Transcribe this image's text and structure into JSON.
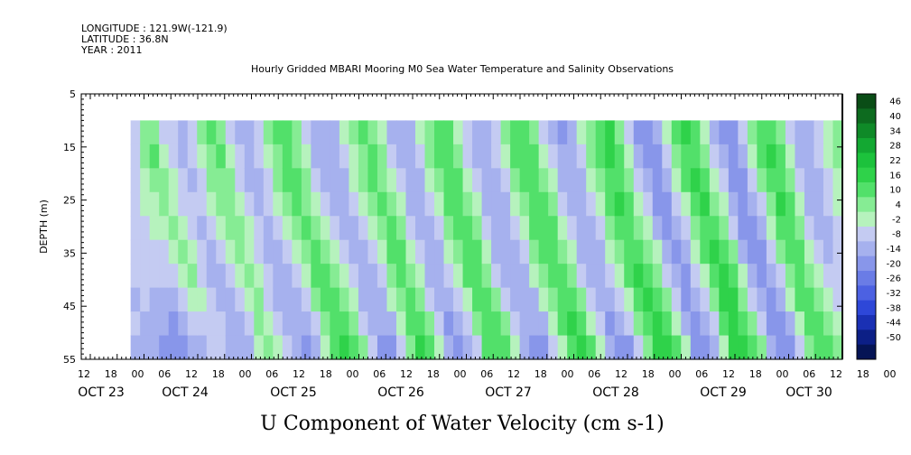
{
  "header": {
    "longitude": "LONGITUDE : 121.9W(-121.9)",
    "latitude": "LATITUDE : 36.8N",
    "year": "YEAR : 2011"
  },
  "chart_data": {
    "type": "heatmap",
    "title": "Hourly Gridded MBARI Mooring M0 Sea Water Temperature and Salinity Observations",
    "subtitle": "U Component of Water Velocity (cm s-1)",
    "ylabel": "DEPTH (m)",
    "ylim": [
      55,
      5
    ],
    "y_ticks": [
      5,
      15,
      25,
      35,
      45,
      55
    ],
    "x_hour_ticks": [
      "12",
      "18",
      "00",
      "06",
      "12",
      "18",
      "00",
      "06",
      "12",
      "18",
      "00",
      "06",
      "12",
      "18",
      "00",
      "06",
      "12",
      "18",
      "00",
      "06",
      "12",
      "18",
      "00",
      "06",
      "12",
      "18",
      "00",
      "06",
      "12",
      "18",
      "00",
      "06",
      "12"
    ],
    "x_date_labels": [
      "OCT 23",
      "OCT 24",
      "OCT 25",
      "OCT 26",
      "OCT 27",
      "OCT 28",
      "OCT 29",
      "OCT 30"
    ],
    "data_start": "2011-10-23 20:00",
    "data_depth_range": [
      10,
      55
    ],
    "colorbar": {
      "labels": [
        46,
        40,
        34,
        28,
        22,
        16,
        10,
        4,
        -2,
        -8,
        -14,
        -20,
        -26,
        -32,
        -38,
        -44,
        -50
      ],
      "colors": [
        "#0a4d16",
        "#0d6b1f",
        "#0f8a28",
        "#13a832",
        "#1cc23c",
        "#2fd24a",
        "#52e06a",
        "#86ec94",
        "#b6f2bd",
        "#c4cbf2",
        "#a6b1ee",
        "#8896ea",
        "#6a7ce6",
        "#4c61e2",
        "#2e47d8",
        "#1a30b4",
        "#0c1f86",
        "#051455"
      ]
    },
    "columns": [
      {
        "day": 0.0,
        "u": [
          -6,
          -8,
          -6,
          -4,
          -3,
          -5,
          -7,
          -9,
          -8,
          -10
        ]
      },
      {
        "day": 0.1,
        "u": [
          4,
          6,
          2,
          -2,
          -3,
          -4,
          -6,
          -8,
          -10,
          -12
        ]
      },
      {
        "day": 0.2,
        "u": [
          8,
          10,
          8,
          3,
          -2,
          -6,
          -8,
          -10,
          -12,
          -14
        ]
      },
      {
        "day": 0.3,
        "u": [
          -4,
          2,
          6,
          4,
          0,
          -4,
          -8,
          -12,
          -14,
          -16
        ]
      },
      {
        "day": 0.4,
        "u": [
          -8,
          -6,
          -2,
          2,
          4,
          0,
          -4,
          -10,
          -16,
          -18
        ]
      },
      {
        "day": 0.5,
        "u": [
          -10,
          -10,
          -8,
          -4,
          0,
          4,
          2,
          -4,
          -12,
          -20
        ]
      },
      {
        "day": 0.6,
        "u": [
          -6,
          -8,
          -10,
          -8,
          -4,
          0,
          4,
          2,
          -4,
          -14
        ]
      },
      {
        "day": 0.7,
        "u": [
          6,
          2,
          -4,
          -8,
          -10,
          -8,
          -4,
          0,
          -4,
          -10
        ]
      },
      {
        "day": 0.8,
        "u": [
          10,
          8,
          4,
          -2,
          -8,
          -12,
          -10,
          -6,
          -4,
          -8
        ]
      },
      {
        "day": 0.9,
        "u": [
          8,
          10,
          8,
          4,
          -2,
          -8,
          -12,
          -12,
          -8,
          -6
        ]
      },
      {
        "day": 1.0,
        "u": [
          -4,
          2,
          6,
          8,
          6,
          2,
          -4,
          -10,
          -12,
          -10
        ]
      },
      {
        "day": 1.1,
        "u": [
          -10,
          -8,
          -4,
          2,
          6,
          6,
          2,
          -4,
          -10,
          -12
        ]
      },
      {
        "day": 1.2,
        "u": [
          -12,
          -12,
          -10,
          -6,
          -2,
          2,
          4,
          2,
          -4,
          -10
        ]
      },
      {
        "day": 1.3,
        "u": [
          -6,
          -8,
          -10,
          -10,
          -8,
          -4,
          0,
          4,
          4,
          0
        ]
      },
      {
        "day": 1.4,
        "u": [
          4,
          0,
          -4,
          -8,
          -10,
          -10,
          -8,
          -4,
          2,
          6
        ]
      },
      {
        "day": 1.5,
        "u": [
          10,
          8,
          4,
          -2,
          -6,
          -10,
          -12,
          -10,
          -6,
          0
        ]
      },
      {
        "day": 1.6,
        "u": [
          12,
          12,
          10,
          6,
          0,
          -6,
          -10,
          -12,
          -12,
          -8
        ]
      },
      {
        "day": 1.7,
        "u": [
          4,
          8,
          10,
          10,
          6,
          0,
          -6,
          -10,
          -14,
          -14
        ]
      },
      {
        "day": 1.8,
        "u": [
          -6,
          -2,
          4,
          8,
          10,
          8,
          2,
          -4,
          -10,
          -16
        ]
      },
      {
        "day": 1.9,
        "u": [
          -12,
          -10,
          -6,
          0,
          6,
          10,
          10,
          4,
          -4,
          -12
        ]
      },
      {
        "day": 2.0,
        "u": [
          -14,
          -14,
          -12,
          -8,
          -2,
          4,
          10,
          12,
          8,
          0
        ]
      },
      {
        "day": 2.1,
        "u": [
          -10,
          -12,
          -14,
          -12,
          -8,
          -2,
          4,
          10,
          14,
          12
        ]
      },
      {
        "day": 2.2,
        "u": [
          -2,
          -6,
          -10,
          -12,
          -12,
          -8,
          -2,
          6,
          12,
          18
        ]
      },
      {
        "day": 2.3,
        "u": [
          6,
          2,
          -2,
          -8,
          -12,
          -12,
          -8,
          -2,
          6,
          14
        ]
      },
      {
        "day": 2.4,
        "u": [
          10,
          8,
          4,
          -2,
          -8,
          -12,
          -14,
          -10,
          -4,
          4
        ]
      },
      {
        "day": 2.5,
        "u": [
          8,
          10,
          10,
          6,
          0,
          -6,
          -12,
          -14,
          -12,
          -8
        ]
      },
      {
        "day": 2.6,
        "u": [
          -2,
          4,
          8,
          10,
          8,
          2,
          -4,
          -10,
          -14,
          -16
        ]
      },
      {
        "day": 2.7,
        "u": [
          -10,
          -6,
          0,
          6,
          10,
          10,
          6,
          -2,
          -10,
          -16
        ]
      },
      {
        "day": 2.8,
        "u": [
          -14,
          -12,
          -8,
          -2,
          4,
          10,
          12,
          8,
          0,
          -8
        ]
      },
      {
        "day": 2.9,
        "u": [
          -10,
          -12,
          -12,
          -10,
          -4,
          2,
          8,
          12,
          12,
          6
        ]
      },
      {
        "day": 3.0,
        "u": [
          -2,
          -6,
          -10,
          -12,
          -12,
          -8,
          -2,
          6,
          12,
          16
        ]
      },
      {
        "day": 3.1,
        "u": [
          8,
          4,
          -2,
          -8,
          -12,
          -14,
          -10,
          -4,
          4,
          12
        ]
      },
      {
        "day": 3.2,
        "u": [
          14,
          12,
          8,
          2,
          -4,
          -10,
          -14,
          -14,
          -8,
          0
        ]
      },
      {
        "day": 3.3,
        "u": [
          12,
          14,
          14,
          10,
          4,
          -2,
          -8,
          -14,
          -16,
          -12
        ]
      },
      {
        "day": 3.4,
        "u": [
          2,
          8,
          12,
          14,
          12,
          6,
          0,
          -8,
          -14,
          -18
        ]
      },
      {
        "day": 3.5,
        "u": [
          -8,
          -4,
          2,
          8,
          12,
          14,
          10,
          2,
          -6,
          -14
        ]
      },
      {
        "day": 3.6,
        "u": [
          -14,
          -12,
          -8,
          -2,
          4,
          10,
          14,
          12,
          6,
          -4
        ]
      },
      {
        "day": 3.7,
        "u": [
          -12,
          -14,
          -14,
          -12,
          -6,
          0,
          6,
          12,
          14,
          10
        ]
      },
      {
        "day": 3.8,
        "u": [
          -4,
          -8,
          -12,
          -14,
          -14,
          -10,
          -4,
          4,
          10,
          14
        ]
      },
      {
        "day": 3.9,
        "u": [
          6,
          2,
          -4,
          -10,
          -14,
          -14,
          -10,
          -4,
          4,
          12
        ]
      },
      {
        "day": 4.0,
        "u": [
          12,
          10,
          6,
          0,
          -6,
          -12,
          -14,
          -12,
          -6,
          2
        ]
      },
      {
        "day": 4.1,
        "u": [
          14,
          14,
          12,
          8,
          2,
          -4,
          -10,
          -14,
          -14,
          -10
        ]
      },
      {
        "day": 4.2,
        "u": [
          8,
          12,
          14,
          14,
          10,
          4,
          -2,
          -10,
          -14,
          -18
        ]
      },
      {
        "day": 4.3,
        "u": [
          -4,
          2,
          8,
          12,
          14,
          12,
          6,
          -2,
          -10,
          -16
        ]
      },
      {
        "day": 4.4,
        "u": [
          -12,
          -8,
          -2,
          4,
          10,
          14,
          14,
          8,
          0,
          -8
        ]
      },
      {
        "day": 4.5,
        "u": [
          -16,
          -14,
          -10,
          -4,
          2,
          8,
          14,
          14,
          10,
          2
        ]
      },
      {
        "day": 4.6,
        "u": [
          -12,
          -14,
          -14,
          -12,
          -6,
          0,
          6,
          12,
          16,
          14
        ]
      },
      {
        "day": 4.7,
        "u": [
          -2,
          -6,
          -10,
          -14,
          -14,
          -10,
          -4,
          4,
          12,
          18
        ]
      },
      {
        "day": 4.8,
        "u": [
          8,
          4,
          -2,
          -8,
          -12,
          -14,
          -12,
          -6,
          2,
          10
        ]
      },
      {
        "day": 4.9,
        "u": [
          14,
          12,
          8,
          2,
          -4,
          -10,
          -14,
          -14,
          -8,
          0
        ]
      },
      {
        "day": 5.0,
        "u": [
          16,
          16,
          14,
          10,
          4,
          -2,
          -8,
          -14,
          -16,
          -12
        ]
      },
      {
        "day": 5.1,
        "u": [
          8,
          12,
          14,
          16,
          14,
          8,
          2,
          -6,
          -14,
          -18
        ]
      },
      {
        "day": 5.2,
        "u": [
          -6,
          0,
          6,
          12,
          14,
          14,
          10,
          2,
          -8,
          -16
        ]
      },
      {
        "day": 5.3,
        "u": [
          -16,
          -12,
          -6,
          2,
          8,
          14,
          16,
          12,
          4,
          -6
        ]
      },
      {
        "day": 5.4,
        "u": [
          -20,
          -18,
          -14,
          -8,
          0,
          8,
          14,
          16,
          14,
          6
        ]
      },
      {
        "day": 5.5,
        "u": [
          -14,
          -16,
          -18,
          -16,
          -10,
          -2,
          6,
          12,
          16,
          16
        ]
      },
      {
        "day": 5.6,
        "u": [
          -2,
          -6,
          -12,
          -16,
          -16,
          -12,
          -4,
          4,
          12,
          18
        ]
      },
      {
        "day": 5.7,
        "u": [
          10,
          6,
          0,
          -8,
          -14,
          -16,
          -14,
          -8,
          0,
          10
        ]
      },
      {
        "day": 5.8,
        "u": [
          16,
          14,
          10,
          2,
          -6,
          -12,
          -16,
          -16,
          -10,
          -2
        ]
      },
      {
        "day": 5.9,
        "u": [
          12,
          14,
          16,
          14,
          8,
          0,
          -8,
          -14,
          -18,
          -16
        ]
      },
      {
        "day": 6.0,
        "u": [
          2,
          8,
          12,
          16,
          14,
          10,
          2,
          -6,
          -14,
          -20
        ]
      },
      {
        "day": 6.1,
        "u": [
          -10,
          -4,
          2,
          8,
          14,
          16,
          12,
          4,
          -6,
          -14
        ]
      },
      {
        "day": 6.2,
        "u": [
          -18,
          -14,
          -8,
          -2,
          6,
          12,
          16,
          16,
          10,
          0
        ]
      },
      {
        "day": 6.3,
        "u": [
          -18,
          -20,
          -18,
          -12,
          -4,
          4,
          12,
          16,
          18,
          16
        ]
      },
      {
        "day": 6.4,
        "u": [
          -8,
          -12,
          -16,
          -18,
          -16,
          -10,
          -2,
          6,
          14,
          20
        ]
      },
      {
        "day": 6.5,
        "u": [
          4,
          0,
          -6,
          -12,
          -16,
          -18,
          -14,
          -6,
          4,
          12
        ]
      },
      {
        "day": 6.6,
        "u": [
          14,
          10,
          4,
          -4,
          -10,
          -16,
          -18,
          -14,
          -6,
          4
        ]
      },
      {
        "day": 6.7,
        "u": [
          14,
          16,
          14,
          8,
          0,
          -8,
          -14,
          -18,
          -16,
          -10
        ]
      },
      {
        "day": 6.8,
        "u": [
          4,
          10,
          14,
          16,
          12,
          4,
          -4,
          -12,
          -18,
          -20
        ]
      },
      {
        "day": 6.9,
        "u": [
          -6,
          -2,
          4,
          10,
          14,
          14,
          8,
          0,
          -10,
          -18
        ]
      },
      {
        "day": 7.0,
        "u": [
          -14,
          -12,
          -8,
          -2,
          6,
          12,
          14,
          10,
          2,
          -8
        ]
      },
      {
        "day": 7.1,
        "u": [
          -12,
          -14,
          -14,
          -10,
          -4,
          2,
          8,
          12,
          12,
          6
        ]
      },
      {
        "day": 7.2,
        "u": [
          -4,
          -8,
          -10,
          -12,
          -12,
          -8,
          -2,
          4,
          10,
          14
        ]
      },
      {
        "day": 7.3,
        "u": [
          2,
          0,
          -4,
          -8,
          -10,
          -10,
          -6,
          0,
          6,
          10
        ]
      },
      {
        "day": 7.4,
        "u": [
          6,
          4,
          2,
          -2,
          -6,
          -8,
          -8,
          -4,
          2,
          6
        ]
      }
    ]
  }
}
